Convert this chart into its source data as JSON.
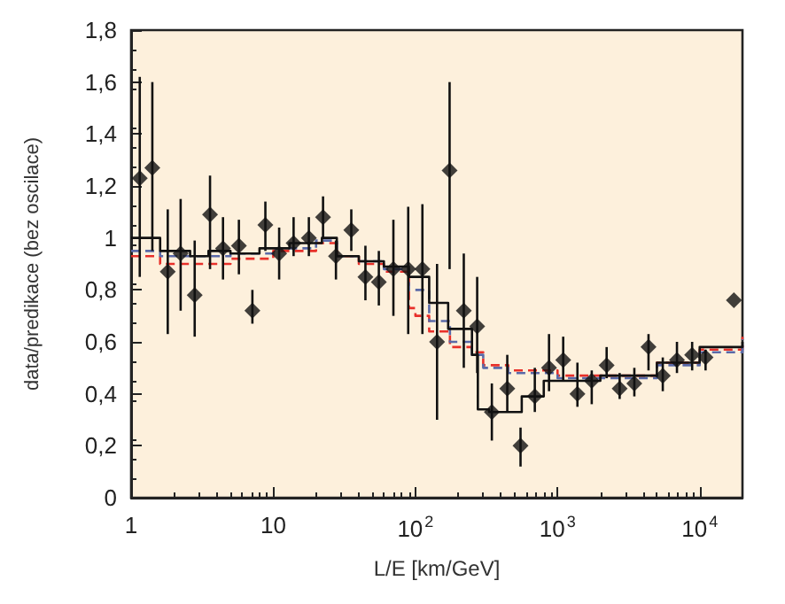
{
  "chart_data": {
    "type": "scatter",
    "xlabel": "L/E [km/GeV]",
    "ylabel": "data/predikace (bez oscilace)",
    "log": "x",
    "grid": false,
    "xlim": [
      1,
      20000
    ],
    "xticks": [
      1,
      10,
      {
        "value": 100,
        "label": "10$^{2}$"
      },
      {
        "value": 1000,
        "label": "10$^{3}$"
      },
      {
        "value": 10000,
        "label": "10$^{4}$"
      }
    ],
    "ylim": [
      0,
      1.8
    ],
    "yticks": [
      0,
      {
        "value": 0.2,
        "label": "0,2"
      },
      {
        "value": 0.4,
        "label": "0,4"
      },
      {
        "value": 0.6,
        "label": "0,6"
      },
      {
        "value": 0.8,
        "label": "0,8"
      },
      1,
      {
        "value": 1.2,
        "label": "1,2"
      },
      {
        "value": 1.4,
        "label": "1,4"
      },
      {
        "value": 1.6,
        "label": "1,6"
      },
      {
        "value": 1.8,
        "label": "1,8"
      }
    ],
    "series": [
      {
        "type": "step",
        "color": "#e8302a",
        "line_style": "dashed",
        "x": [
          1,
          1.6,
          5,
          10,
          20,
          28,
          40,
          60,
          90,
          100,
          125,
          175,
          250,
          300,
          450,
          1000,
          2000,
          5000,
          10000,
          20000
        ],
        "values": [
          0.93,
          0.9,
          0.92,
          0.95,
          0.98,
          0.93,
          0.9,
          0.87,
          0.73,
          0.7,
          0.64,
          0.58,
          0.56,
          0.51,
          0.49,
          0.47,
          0.47,
          0.52,
          0.57,
          0.62
        ]
      },
      {
        "type": "step",
        "color": "#5a6aa8",
        "line_style": "dashed",
        "x": [
          1,
          1.6,
          5,
          10,
          20,
          28,
          40,
          60,
          90,
          125,
          175,
          250,
          300,
          450,
          1000,
          2000,
          5000,
          10000,
          20000
        ],
        "values": [
          0.95,
          0.93,
          0.94,
          0.96,
          0.99,
          0.93,
          0.91,
          0.88,
          0.8,
          0.68,
          0.6,
          0.55,
          0.5,
          0.48,
          0.46,
          0.46,
          0.51,
          0.56,
          0.61
        ]
      },
      {
        "type": "step",
        "color": "#111111",
        "line_style": "solid",
        "x": [
          1,
          1.6,
          2.6,
          3.5,
          5,
          8,
          13,
          22,
          28,
          40,
          60,
          90,
          125,
          170,
          250,
          275,
          330,
          560,
          800,
          1100,
          2000,
          5000,
          10000,
          20000
        ],
        "values": [
          1.0,
          0.95,
          0.93,
          0.95,
          0.94,
          0.96,
          0.98,
          1.0,
          0.93,
          0.91,
          0.89,
          0.85,
          0.75,
          0.65,
          0.55,
          0.34,
          0.33,
          0.39,
          0.45,
          0.45,
          0.47,
          0.52,
          0.58,
          0.6
        ]
      },
      {
        "color": "#111111",
        "marker": "diamond",
        "x": [
          1.15,
          1.41,
          1.81,
          2.23,
          2.8,
          3.59,
          4.43,
          5.73,
          7.13,
          8.8,
          11,
          13.9,
          17.8,
          22.4,
          27.6,
          35.4,
          44.5,
          55.3,
          70,
          89,
          112,
          142,
          174,
          219,
          272,
          345,
          443,
          549,
          692,
          871,
          1096,
          1380,
          1740,
          2215,
          2735,
          3470,
          4365,
          5500,
          6920,
          8850,
          11000,
          17400
        ],
        "values": [
          1.23,
          1.27,
          0.87,
          0.94,
          0.78,
          1.09,
          0.96,
          0.97,
          0.72,
          1.05,
          0.94,
          0.98,
          1.0,
          1.08,
          0.93,
          1.03,
          0.85,
          0.83,
          0.88,
          0.88,
          0.88,
          0.6,
          1.26,
          0.72,
          0.66,
          0.33,
          0.42,
          0.2,
          0.39,
          0.5,
          0.53,
          0.4,
          0.45,
          0.51,
          0.42,
          0.44,
          0.58,
          0.47,
          0.53,
          0.55,
          0.54,
          0.76
        ],
        "errors": [
          [
            0.85,
            1.62
          ],
          [
            0.95,
            1.6
          ],
          [
            0.63,
            1.11
          ],
          [
            0.72,
            1.15
          ],
          [
            0.62,
            0.99
          ],
          [
            0.88,
            1.24
          ],
          [
            0.84,
            1.08
          ],
          [
            0.86,
            1.07
          ],
          [
            0.67,
            0.8
          ],
          [
            0.95,
            1.14
          ],
          [
            0.84,
            1.04
          ],
          [
            0.93,
            1.08
          ],
          [
            0.93,
            1.08
          ],
          [
            1.0,
            1.16
          ],
          [
            0.84,
            0.99
          ],
          [
            0.95,
            1.11
          ],
          [
            0.76,
            0.97
          ],
          [
            0.74,
            0.95
          ],
          [
            0.7,
            1.07
          ],
          [
            0.63,
            1.12
          ],
          [
            0.63,
            1.13
          ],
          [
            0.3,
            0.9
          ],
          [
            0.88,
            1.6
          ],
          [
            0.5,
            0.94
          ],
          [
            0.48,
            0.85
          ],
          [
            0.22,
            0.44
          ],
          [
            0.33,
            0.55
          ],
          [
            0.12,
            0.27
          ],
          [
            0.33,
            0.5
          ],
          [
            0.41,
            0.63
          ],
          [
            0.45,
            0.62
          ],
          [
            0.35,
            0.52
          ],
          [
            0.36,
            0.49
          ],
          [
            0.46,
            0.58
          ],
          [
            0.38,
            0.48
          ],
          [
            0.39,
            0.5
          ],
          [
            0.49,
            0.63
          ],
          [
            0.41,
            0.54
          ],
          [
            0.48,
            0.6
          ],
          [
            0.49,
            0.6
          ],
          [
            0.49,
            0.57
          ],
          null
        ]
      }
    ]
  }
}
